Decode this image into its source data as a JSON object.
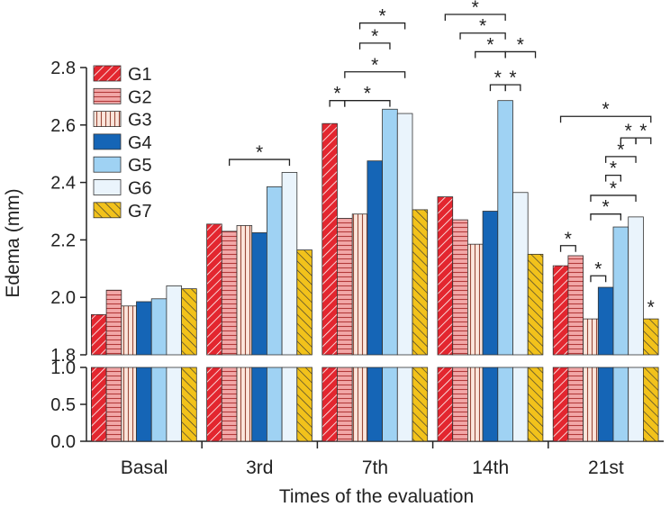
{
  "chart_data": {
    "type": "bar",
    "ylabel": "Edema (mm)",
    "xlabel": "Times of the evaluation",
    "categories": [
      "Basal",
      "3rd",
      "7th",
      "14th",
      "21st"
    ],
    "y_upper_range": [
      1.8,
      2.8
    ],
    "y_upper_ticks": [
      "1.8",
      "2.0",
      "2.2",
      "2.4",
      "2.6",
      "2.8"
    ],
    "y_lower_range": [
      0.0,
      1.0
    ],
    "y_lower_ticks": [
      "0.0",
      "0.5",
      "1.0"
    ],
    "legend_position": "top-left",
    "significance_symbol": "*",
    "series": [
      {
        "name": "G1",
        "color": "#e3262f",
        "pattern": "diag-up",
        "values": [
          1.94,
          2.255,
          2.605,
          2.35,
          2.11
        ]
      },
      {
        "name": "G2",
        "color": "#f2a7a7",
        "pattern": "horizontal",
        "values": [
          2.025,
          2.23,
          2.275,
          2.27,
          2.145
        ]
      },
      {
        "name": "G3",
        "color": "#fbe6dc",
        "pattern": "vertical",
        "values": [
          1.97,
          2.25,
          2.29,
          2.185,
          1.925
        ]
      },
      {
        "name": "G4",
        "color": "#1565b6",
        "pattern": "solid",
        "values": [
          1.985,
          2.225,
          2.475,
          2.3,
          2.035
        ]
      },
      {
        "name": "G5",
        "color": "#9fd2f3",
        "pattern": "solid",
        "values": [
          1.995,
          2.385,
          2.655,
          2.685,
          2.245
        ]
      },
      {
        "name": "G6",
        "color": "#eaf4fc",
        "pattern": "solid",
        "values": [
          2.04,
          2.435,
          2.64,
          2.365,
          2.28
        ]
      },
      {
        "name": "G7",
        "color": "#f2c21b",
        "pattern": "diag-down",
        "values": [
          2.03,
          2.165,
          2.305,
          2.15,
          1.925
        ]
      }
    ],
    "significance_brackets": [
      {
        "category": 1,
        "from": 1,
        "to": 5,
        "level": 2.48
      },
      {
        "category": 2,
        "from": 0,
        "to": 1,
        "level": 2.685
      },
      {
        "category": 2,
        "from": 1,
        "to": 4,
        "level": 2.685
      },
      {
        "category": 2,
        "from": 1,
        "to": 5,
        "level": 2.785
      },
      {
        "category": 2,
        "from": 2,
        "to": 4,
        "level": 2.885
      },
      {
        "category": 2,
        "from": 2,
        "to": 5,
        "level": 2.955
      },
      {
        "category": 3,
        "from": 0,
        "to": 4,
        "level": 2.985
      },
      {
        "category": 3,
        "from": 1,
        "to": 4,
        "level": 2.92
      },
      {
        "category": 3,
        "from": 2,
        "to": 4,
        "level": 2.855
      },
      {
        "category": 3,
        "from": 4,
        "to": 6,
        "level": 2.855
      },
      {
        "category": 3,
        "from": 3,
        "to": 4,
        "level": 2.74
      },
      {
        "category": 3,
        "from": 4,
        "to": 5,
        "level": 2.74
      },
      {
        "category": 4,
        "from": 0,
        "to": 1,
        "level": 2.18
      },
      {
        "category": 4,
        "from": 2,
        "to": 3,
        "level": 2.075
      },
      {
        "category": 4,
        "from": 2,
        "to": 4,
        "level": 2.29
      },
      {
        "category": 4,
        "from": 2,
        "to": 5,
        "level": 2.355
      },
      {
        "category": 4,
        "from": 3,
        "to": 4,
        "level": 2.425
      },
      {
        "category": 4,
        "from": 3,
        "to": 5,
        "level": 2.49
      },
      {
        "category": 4,
        "from": 4,
        "to": 5,
        "level": 2.555
      },
      {
        "category": 4,
        "from": 5,
        "to": 6,
        "level": 2.555
      },
      {
        "category": 4,
        "from": 0,
        "to": 6,
        "level": 2.63
      }
    ],
    "single_marks": [
      {
        "category": 4,
        "series": 6
      }
    ]
  }
}
